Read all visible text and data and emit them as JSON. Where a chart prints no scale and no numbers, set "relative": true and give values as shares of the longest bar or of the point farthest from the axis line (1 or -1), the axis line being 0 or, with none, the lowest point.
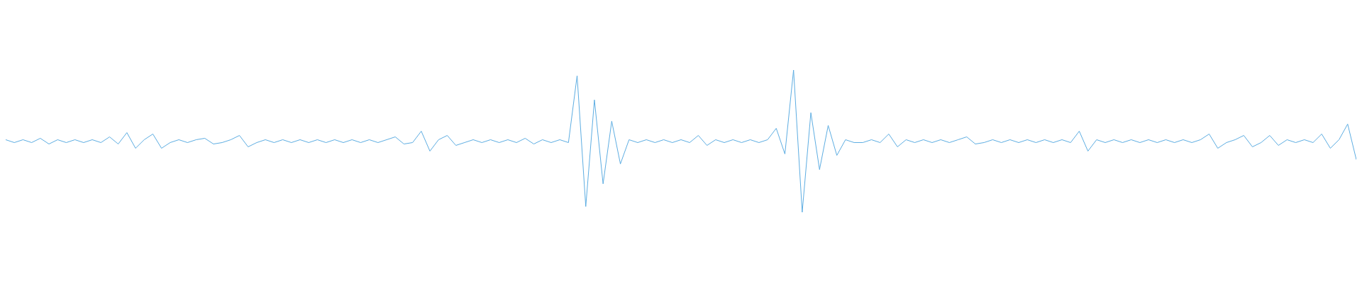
{
  "chart_data": {
    "type": "line",
    "relative": true,
    "categories": [
      null,
      null,
      null,
      null,
      null,
      null,
      null,
      null,
      null,
      null,
      null,
      null,
      null,
      null,
      null,
      null,
      null,
      null,
      null,
      null,
      null,
      null,
      null,
      null,
      null,
      null,
      null,
      null,
      null,
      null,
      null,
      null,
      null,
      null,
      null,
      null,
      null,
      null,
      null,
      null,
      null,
      null,
      null,
      null,
      null,
      null,
      null,
      null,
      null,
      null,
      null,
      null,
      null,
      null,
      null,
      null,
      null,
      null,
      null,
      null,
      null,
      null,
      null,
      null,
      null,
      null,
      null,
      null,
      null,
      null,
      null,
      null,
      null,
      null,
      null,
      null,
      null,
      null,
      null,
      null,
      null,
      null,
      null,
      null,
      null,
      null,
      null,
      null,
      null,
      null,
      null,
      null,
      null,
      null,
      null,
      null,
      null,
      null,
      null,
      null,
      null,
      null,
      null,
      null,
      null,
      null,
      null,
      null,
      null,
      null,
      null,
      null,
      null,
      null,
      null,
      null,
      null,
      null,
      null,
      null,
      null,
      null,
      null,
      null,
      null,
      null,
      null,
      null,
      null,
      null,
      null,
      null,
      null,
      null,
      null,
      null,
      null,
      null,
      null,
      null,
      null,
      null,
      null,
      null,
      null,
      null,
      null,
      null,
      null,
      null,
      null,
      null,
      null,
      null,
      null,
      null,
      null
    ],
    "series": [
      {
        "color": "#5dade2",
        "values": [
          0.51,
          0.49,
          0.51,
          0.49,
          0.52,
          0.48,
          0.51,
          0.49,
          0.51,
          0.49,
          0.51,
          0.49,
          0.53,
          0.48,
          0.56,
          0.45,
          0.51,
          0.55,
          0.45,
          0.49,
          0.51,
          0.49,
          0.51,
          0.52,
          0.48,
          0.49,
          0.51,
          0.54,
          0.46,
          0.49,
          0.51,
          0.49,
          0.51,
          0.49,
          0.51,
          0.49,
          0.51,
          0.49,
          0.51,
          0.49,
          0.51,
          0.49,
          0.51,
          0.49,
          0.51,
          0.53,
          0.48,
          0.49,
          0.57,
          0.43,
          0.51,
          0.54,
          0.47,
          0.49,
          0.51,
          0.49,
          0.51,
          0.49,
          0.51,
          0.49,
          0.52,
          0.48,
          0.51,
          0.49,
          0.51,
          0.49,
          0.96,
          0.04,
          0.79,
          0.2,
          0.64,
          0.34,
          0.51,
          0.49,
          0.51,
          0.49,
          0.51,
          0.49,
          0.51,
          0.49,
          0.54,
          0.47,
          0.51,
          0.49,
          0.51,
          0.49,
          0.51,
          0.49,
          0.51,
          0.59,
          0.41,
          1,
          0,
          0.7,
          0.3,
          0.61,
          0.4,
          0.51,
          0.49,
          0.49,
          0.51,
          0.49,
          0.55,
          0.46,
          0.51,
          0.49,
          0.51,
          0.49,
          0.51,
          0.49,
          0.51,
          0.53,
          0.48,
          0.49,
          0.51,
          0.49,
          0.51,
          0.49,
          0.51,
          0.49,
          0.51,
          0.49,
          0.51,
          0.49,
          0.57,
          0.43,
          0.51,
          0.49,
          0.51,
          0.49,
          0.51,
          0.49,
          0.51,
          0.49,
          0.51,
          0.49,
          0.51,
          0.49,
          0.51,
          0.55,
          0.45,
          0.49,
          0.51,
          0.54,
          0.46,
          0.49,
          0.54,
          0.47,
          0.51,
          0.49,
          0.51,
          0.49,
          0.55,
          0.45,
          0.51,
          0.62,
          0.37
        ]
      }
    ]
  }
}
